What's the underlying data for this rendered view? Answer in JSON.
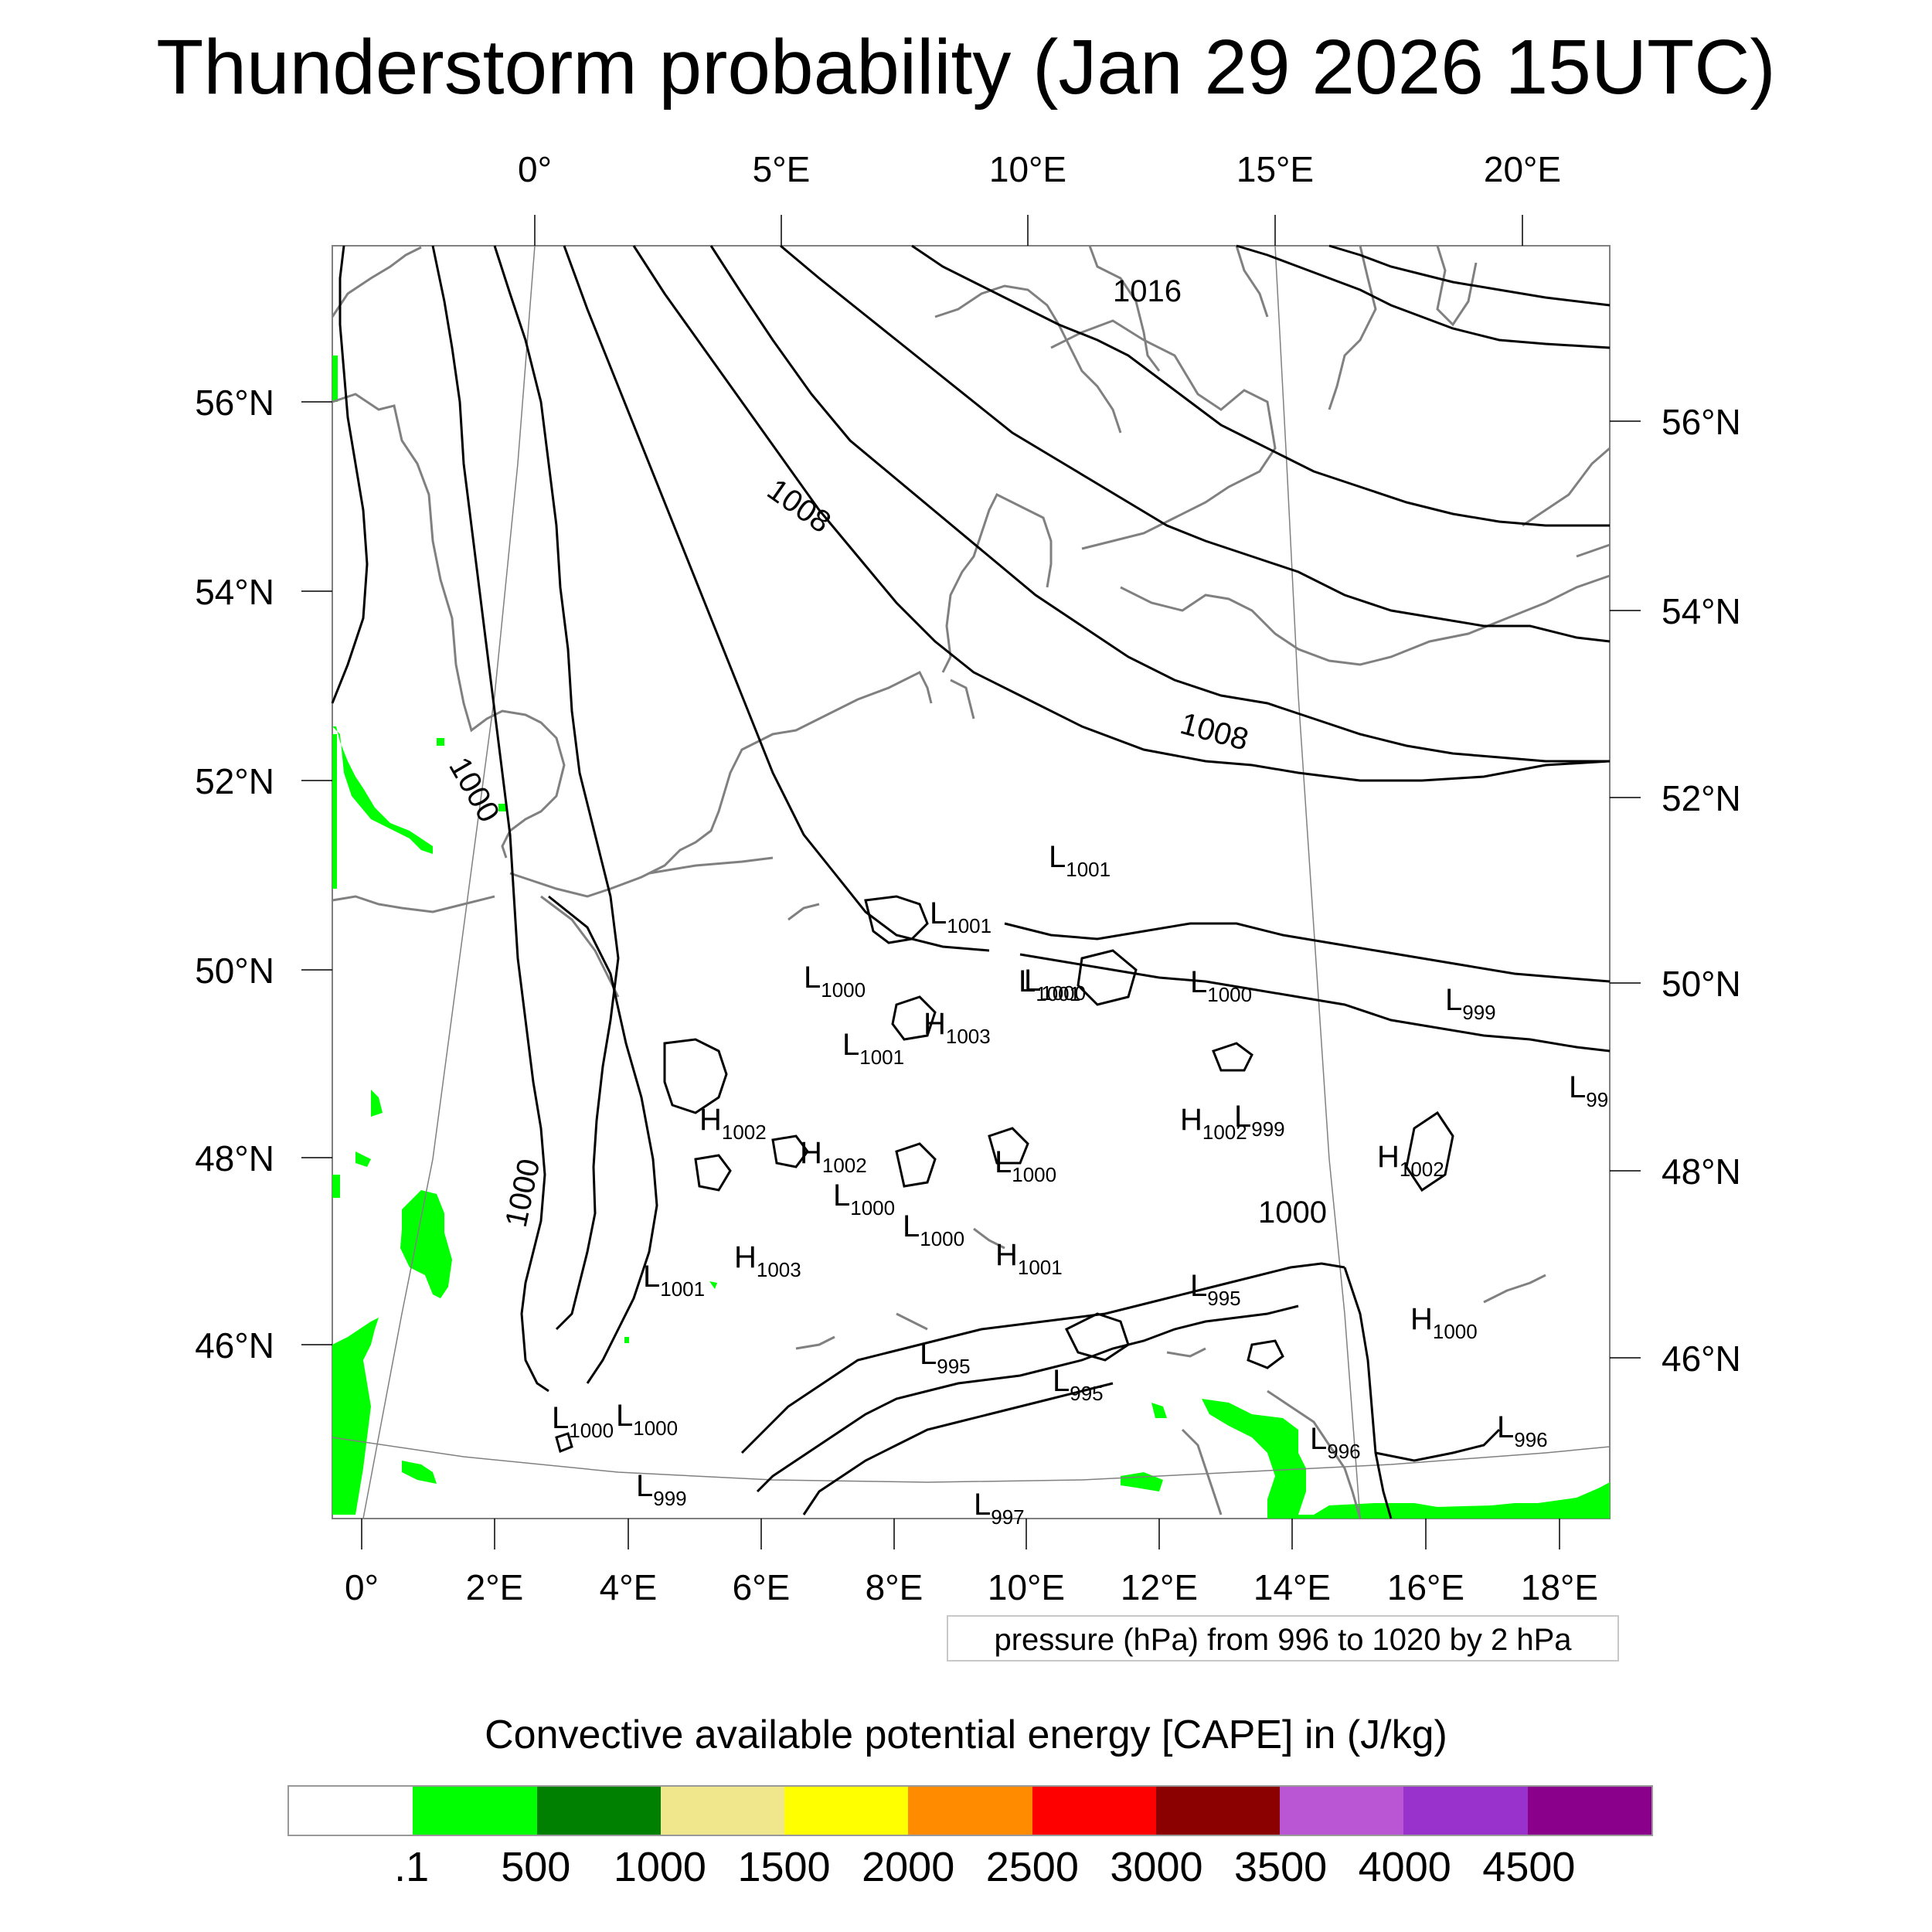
{
  "title": "Thunderstorm probability (Jan 29 2026 15UTC)",
  "axes": {
    "top_lon_ticks": [
      "0°",
      "5°E",
      "10°E",
      "15°E",
      "20°E"
    ],
    "bottom_lon_ticks": [
      "0°",
      "2°E",
      "4°E",
      "6°E",
      "8°E",
      "10°E",
      "12°E",
      "14°E",
      "16°E",
      "18°E"
    ],
    "left_lat_ticks": [
      "56°N",
      "54°N",
      "52°N",
      "50°N",
      "48°N",
      "46°N"
    ],
    "right_lat_ticks": [
      "56°N",
      "54°N",
      "52°N",
      "50°N",
      "48°N",
      "46°N"
    ]
  },
  "isobar_labels": [
    "1016",
    "1008",
    "1008",
    "1000",
    "1000",
    "1000"
  ],
  "pressure_centers": [
    {
      "letter": "L",
      "value": "1001"
    },
    {
      "letter": "L",
      "value": "1001"
    },
    {
      "letter": "L",
      "value": "1000"
    },
    {
      "letter": "L",
      "value": "999"
    },
    {
      "letter": "L",
      "value": "1000"
    },
    {
      "letter": "L",
      "value": "1001"
    },
    {
      "letter": "L",
      "value": "1000"
    },
    {
      "letter": "H",
      "value": "1003"
    },
    {
      "letter": "L",
      "value": "1001"
    },
    {
      "letter": "L",
      "value": "99"
    },
    {
      "letter": "H",
      "value": "1002"
    },
    {
      "letter": "H",
      "value": "1002"
    },
    {
      "letter": "H",
      "value": "1002"
    },
    {
      "letter": "L",
      "value": "999"
    },
    {
      "letter": "H",
      "value": "1002"
    },
    {
      "letter": "L",
      "value": "1000"
    },
    {
      "letter": "L",
      "value": "1000"
    },
    {
      "letter": "L",
      "value": "1000"
    },
    {
      "letter": "H",
      "value": "1001"
    },
    {
      "letter": "H",
      "value": "1003"
    },
    {
      "letter": "L",
      "value": "1001"
    },
    {
      "letter": "L",
      "value": "995"
    },
    {
      "letter": "H",
      "value": "1000"
    },
    {
      "letter": "L",
      "value": "995"
    },
    {
      "letter": "L",
      "value": "995"
    },
    {
      "letter": "L",
      "value": "1000"
    },
    {
      "letter": "L",
      "value": "1000"
    },
    {
      "letter": "L",
      "value": "996"
    },
    {
      "letter": "L",
      "value": "996"
    },
    {
      "letter": "L",
      "value": "999"
    },
    {
      "letter": "L",
      "value": "997"
    }
  ],
  "contour_note": "pressure (hPa) from 996 to 1020 by 2 hPa",
  "colorbar": {
    "title": "Convective available potential energy [CAPE] in (J/kg)",
    "colors": [
      "#ffffff",
      "#00ff00",
      "#008000",
      "#f0e68c",
      "#ffff00",
      "#ff8c00",
      "#ff0000",
      "#8b0000",
      "#ba55d3",
      "#9932cc",
      "#8b008b"
    ],
    "labels": [
      ".1",
      "500",
      "1000",
      "1500",
      "2000",
      "2500",
      "3000",
      "3500",
      "4000",
      "4500"
    ]
  },
  "colors": {
    "cape_low": "#00ff00",
    "coastline": "#808080",
    "isobar": "#000000"
  }
}
